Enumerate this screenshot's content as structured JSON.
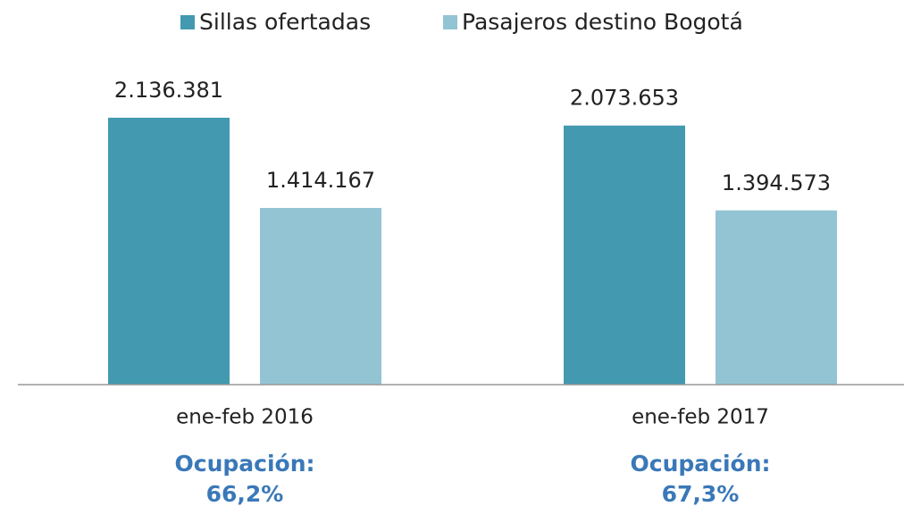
{
  "chart_data": {
    "type": "bar",
    "categories": [
      "ene-feb 2016",
      "ene-feb 2017"
    ],
    "series": [
      {
        "name": "Sillas ofertadas",
        "color": "#4299b0",
        "values": [
          2136381,
          2073653
        ],
        "value_labels": [
          "2.136.381",
          "2.073.653"
        ]
      },
      {
        "name": "Pasajeros destino Bogotá",
        "color": "#93c4d4",
        "values": [
          1414167,
          1394573
        ],
        "value_labels": [
          "1.414.167",
          "1.394.573"
        ]
      }
    ],
    "ylim": [
      0,
      2500000
    ],
    "annotations": [
      [
        "Ocupación:",
        "66,2%"
      ],
      [
        "Ocupación:",
        "67,3%"
      ]
    ]
  }
}
